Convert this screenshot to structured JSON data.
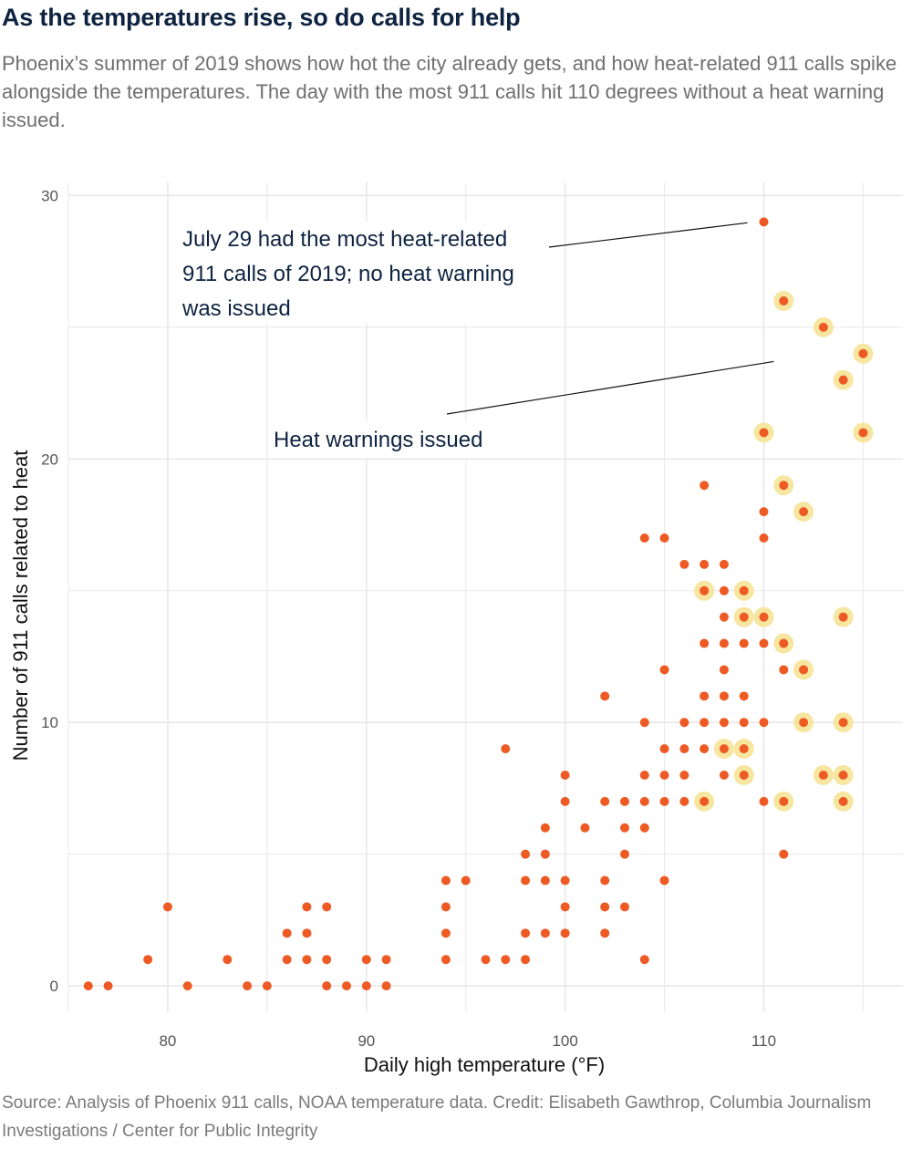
{
  "header": {
    "title": "As the temperatures rise, so do calls for help",
    "subtitle": "Phoenix’s summer of 2019 shows how hot the city already gets, and how heat-related 911 calls spike alongside the temperatures. The day with the most 911 calls hit 110 degrees without a heat warning issued."
  },
  "footer": {
    "source": "Source: Analysis of Phoenix 911 calls, NOAA temperature data. Credit: Elisabeth Gawthrop, Columbia Journalism Investigations / Center for Public Integrity"
  },
  "colors": {
    "point": "#ee5a24",
    "warning_halo": "#f7e6a0",
    "grid": "#e8e8e8",
    "annotation_text": "#0d2340"
  },
  "chart_data": {
    "type": "scatter",
    "xlabel": "Daily high temperature (°F)",
    "ylabel": "Number of 911 calls related to heat",
    "xlim": [
      75,
      117
    ],
    "ylim": [
      -1,
      30.5
    ],
    "x_ticks": [
      80,
      90,
      100,
      110
    ],
    "y_ticks": [
      0,
      10,
      20,
      30
    ],
    "grid": true,
    "annotations": [
      {
        "text_lines": [
          "July 29 had the most heat-related",
          "911 calls of 2019; no heat warning",
          "was issued"
        ],
        "points_to": [
          110,
          29
        ]
      },
      {
        "text_lines": [
          "Heat warnings issued"
        ],
        "points_to": [
          110.5,
          23.7
        ]
      }
    ],
    "points": [
      [
        76,
        0
      ],
      [
        77,
        0
      ],
      [
        79,
        1
      ],
      [
        80,
        3
      ],
      [
        81,
        0
      ],
      [
        83,
        1
      ],
      [
        84,
        0
      ],
      [
        85,
        0
      ],
      [
        86,
        2
      ],
      [
        86,
        1
      ],
      [
        87,
        3
      ],
      [
        87,
        2
      ],
      [
        87,
        1
      ],
      [
        88,
        3
      ],
      [
        88,
        1
      ],
      [
        88,
        0
      ],
      [
        89,
        0
      ],
      [
        90,
        1
      ],
      [
        90,
        0
      ],
      [
        91,
        1
      ],
      [
        91,
        0
      ],
      [
        94,
        4
      ],
      [
        94,
        3
      ],
      [
        94,
        2
      ],
      [
        94,
        1
      ],
      [
        95,
        4
      ],
      [
        96,
        1
      ],
      [
        97,
        9
      ],
      [
        97,
        1
      ],
      [
        98,
        5
      ],
      [
        98,
        4
      ],
      [
        98,
        2
      ],
      [
        98,
        1
      ],
      [
        99,
        6
      ],
      [
        99,
        5
      ],
      [
        99,
        4
      ],
      [
        99,
        2
      ],
      [
        100,
        8
      ],
      [
        100,
        7
      ],
      [
        100,
        4
      ],
      [
        100,
        3
      ],
      [
        100,
        2
      ],
      [
        101,
        6
      ],
      [
        102,
        11
      ],
      [
        102,
        7
      ],
      [
        102,
        4
      ],
      [
        102,
        3
      ],
      [
        102,
        2
      ],
      [
        103,
        7
      ],
      [
        103,
        6
      ],
      [
        103,
        5
      ],
      [
        103,
        3
      ],
      [
        104,
        17
      ],
      [
        104,
        10
      ],
      [
        104,
        8
      ],
      [
        104,
        7
      ],
      [
        104,
        6
      ],
      [
        104,
        1
      ],
      [
        105,
        17
      ],
      [
        105,
        12
      ],
      [
        105,
        9
      ],
      [
        105,
        8
      ],
      [
        105,
        7
      ],
      [
        105,
        4
      ],
      [
        106,
        16
      ],
      [
        106,
        10
      ],
      [
        106,
        9
      ],
      [
        106,
        8
      ],
      [
        106,
        7
      ],
      [
        107,
        19
      ],
      [
        107,
        16
      ],
      [
        107,
        13
      ],
      [
        107,
        11
      ],
      [
        107,
        10
      ],
      [
        107,
        9
      ],
      [
        108,
        16
      ],
      [
        108,
        15
      ],
      [
        108,
        14
      ],
      [
        108,
        13
      ],
      [
        108,
        12
      ],
      [
        108,
        11
      ],
      [
        108,
        10
      ],
      [
        108,
        8
      ],
      [
        109,
        13
      ],
      [
        109,
        11
      ],
      [
        109,
        10
      ],
      [
        110,
        29
      ],
      [
        110,
        18
      ],
      [
        110,
        17
      ],
      [
        110,
        13
      ],
      [
        110,
        10
      ],
      [
        110,
        7
      ],
      [
        111,
        12
      ],
      [
        111,
        5
      ],
      [
        107,
        15,
        "w"
      ],
      [
        107,
        7,
        "w"
      ],
      [
        108,
        9,
        "w"
      ],
      [
        109,
        15,
        "w"
      ],
      [
        109,
        14,
        "w"
      ],
      [
        109,
        9,
        "w"
      ],
      [
        109,
        8,
        "w"
      ],
      [
        110,
        21,
        "w"
      ],
      [
        110,
        14,
        "w"
      ],
      [
        111,
        26,
        "w"
      ],
      [
        111,
        19,
        "w"
      ],
      [
        111,
        13,
        "w"
      ],
      [
        111,
        7,
        "w"
      ],
      [
        112,
        18,
        "w"
      ],
      [
        112,
        12,
        "w"
      ],
      [
        112,
        10,
        "w"
      ],
      [
        113,
        25,
        "w"
      ],
      [
        113,
        8,
        "w"
      ],
      [
        114,
        23,
        "w"
      ],
      [
        114,
        14,
        "w"
      ],
      [
        114,
        10,
        "w"
      ],
      [
        114,
        8,
        "w"
      ],
      [
        114,
        7,
        "w"
      ],
      [
        115,
        24,
        "w"
      ],
      [
        115,
        21,
        "w"
      ]
    ]
  }
}
